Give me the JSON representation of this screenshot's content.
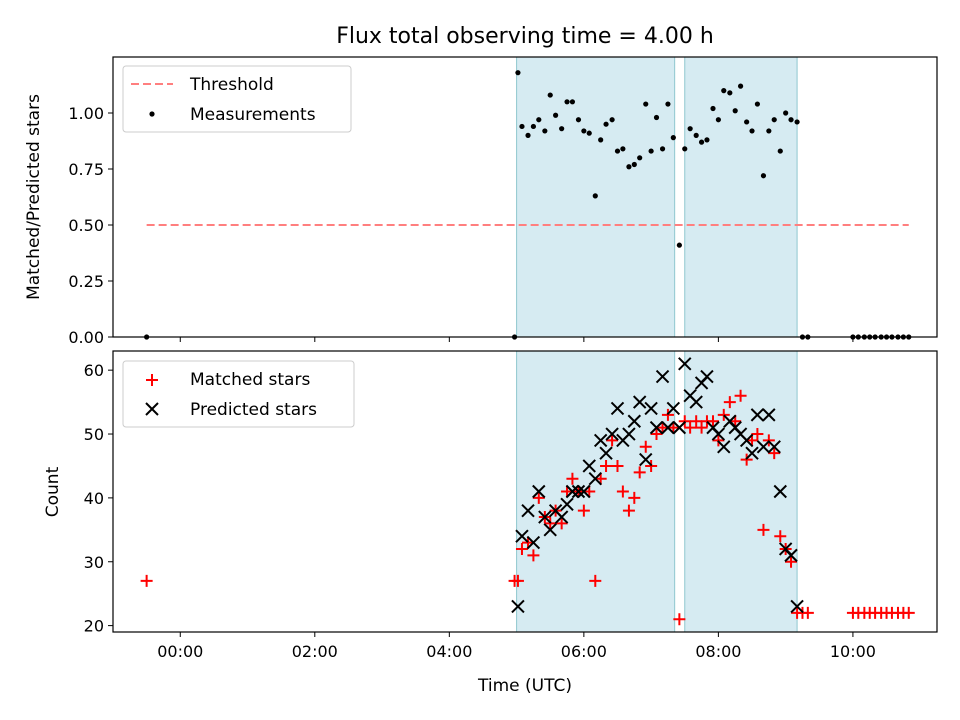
{
  "chart_data": [
    {
      "type": "scatter",
      "title": "Flux total observing time = 4.00 h",
      "xlabel": "",
      "ylabel": "Matched/Predicted stars",
      "xlim": [
        -1.0,
        11.25
      ],
      "ylim": [
        0.0,
        1.25
      ],
      "yticks": [
        0.0,
        0.25,
        0.5,
        0.75,
        1.0
      ],
      "ytick_labels": [
        "0.00",
        "0.25",
        "0.50",
        "0.75",
        "1.00"
      ],
      "shaded_intervals": [
        [
          5.0,
          7.35
        ],
        [
          7.5,
          9.17
        ]
      ],
      "shade_color": "#add8e6",
      "legend_position": "upper-left",
      "threshold": {
        "name": "Threshold",
        "y": 0.5,
        "x_range": [
          -0.5,
          10.83
        ],
        "color": "#ff7f7f",
        "style": "dashed"
      },
      "series": [
        {
          "name": "Measurements",
          "marker": "dot",
          "color": "#000000",
          "x": [
            -0.5,
            4.97,
            5.02,
            5.08,
            5.17,
            5.25,
            5.33,
            5.42,
            5.5,
            5.58,
            5.67,
            5.75,
            5.83,
            5.92,
            6.0,
            6.08,
            6.17,
            6.25,
            6.33,
            6.42,
            6.5,
            6.58,
            6.67,
            6.75,
            6.83,
            6.92,
            7.0,
            7.08,
            7.17,
            7.25,
            7.33,
            7.42,
            7.5,
            7.58,
            7.67,
            7.75,
            7.83,
            7.92,
            8.0,
            8.08,
            8.17,
            8.25,
            8.33,
            8.42,
            8.5,
            8.58,
            8.67,
            8.75,
            8.83,
            8.92,
            9.0,
            9.08,
            9.17,
            9.25,
            9.33,
            10.0,
            10.08,
            10.17,
            10.25,
            10.33,
            10.42,
            10.5,
            10.58,
            10.67,
            10.75,
            10.83
          ],
          "y": [
            0.0,
            0.0,
            1.18,
            0.94,
            0.9,
            0.94,
            0.97,
            0.92,
            1.08,
            0.99,
            0.93,
            1.05,
            1.05,
            0.97,
            0.92,
            0.91,
            0.63,
            0.88,
            0.95,
            0.97,
            0.83,
            0.84,
            0.76,
            0.77,
            0.8,
            1.04,
            0.83,
            0.98,
            0.84,
            1.04,
            0.89,
            0.41,
            0.84,
            0.93,
            0.9,
            0.87,
            0.88,
            1.02,
            0.97,
            1.1,
            1.09,
            1.01,
            1.12,
            0.96,
            0.92,
            1.04,
            0.72,
            0.92,
            0.97,
            0.83,
            1.0,
            0.97,
            0.96,
            0.0,
            0.0,
            0.0,
            0.0,
            0.0,
            0.0,
            0.0,
            0.0,
            0.0,
            0.0,
            0.0,
            0.0,
            0.0
          ]
        }
      ]
    },
    {
      "type": "scatter",
      "title": "",
      "xlabel": "Time (UTC)",
      "ylabel": "Count",
      "xlim": [
        -1.0,
        11.25
      ],
      "ylim": [
        19.0,
        63.0
      ],
      "yticks": [
        20,
        30,
        40,
        50,
        60
      ],
      "ytick_labels": [
        "20",
        "30",
        "40",
        "50",
        "60"
      ],
      "xticks": [
        0,
        2,
        4,
        6,
        8,
        10
      ],
      "xtick_labels": [
        "00:00",
        "02:00",
        "04:00",
        "06:00",
        "08:00",
        "10:00"
      ],
      "shaded_intervals": [
        [
          5.0,
          7.35
        ],
        [
          7.5,
          9.17
        ]
      ],
      "shade_color": "#add8e6",
      "legend_position": "upper-left",
      "series": [
        {
          "name": "Matched stars",
          "marker": "plus",
          "color": "#ff0000",
          "x": [
            -0.5,
            4.97,
            5.02,
            5.08,
            5.17,
            5.25,
            5.33,
            5.42,
            5.5,
            5.58,
            5.67,
            5.75,
            5.83,
            5.92,
            6.0,
            6.08,
            6.17,
            6.25,
            6.33,
            6.42,
            6.5,
            6.58,
            6.67,
            6.75,
            6.83,
            6.92,
            7.0,
            7.08,
            7.17,
            7.25,
            7.33,
            7.42,
            7.5,
            7.58,
            7.67,
            7.75,
            7.83,
            7.92,
            8.0,
            8.08,
            8.17,
            8.25,
            8.33,
            8.42,
            8.5,
            8.58,
            8.67,
            8.75,
            8.83,
            8.92,
            9.0,
            9.08,
            9.17,
            9.25,
            9.33,
            10.0,
            10.08,
            10.17,
            10.25,
            10.33,
            10.42,
            10.5,
            10.58,
            10.67,
            10.75,
            10.83
          ],
          "y": [
            27,
            27,
            27,
            32,
            33,
            31,
            40,
            37,
            36,
            38,
            36,
            41,
            43,
            41,
            38,
            41,
            27,
            43,
            45,
            49,
            45,
            41,
            38,
            40,
            44,
            48,
            45,
            50,
            51,
            53,
            51,
            21,
            52,
            51,
            52,
            51,
            52,
            52,
            49,
            53,
            55,
            52,
            56,
            46,
            49,
            50,
            35,
            49,
            47,
            34,
            32,
            30,
            22,
            22,
            22,
            22,
            22,
            22,
            22,
            22,
            22,
            22,
            22,
            22,
            22,
            22
          ]
        },
        {
          "name": "Predicted stars",
          "marker": "x",
          "color": "#000000",
          "x": [
            5.02,
            5.08,
            5.17,
            5.25,
            5.33,
            5.42,
            5.5,
            5.58,
            5.67,
            5.75,
            5.83,
            5.92,
            6.0,
            6.08,
            6.17,
            6.25,
            6.33,
            6.42,
            6.5,
            6.58,
            6.67,
            6.75,
            6.83,
            6.92,
            7.0,
            7.08,
            7.17,
            7.25,
            7.33,
            7.42,
            7.5,
            7.58,
            7.67,
            7.75,
            7.83,
            7.92,
            8.0,
            8.08,
            8.17,
            8.25,
            8.33,
            8.42,
            8.5,
            8.58,
            8.67,
            8.75,
            8.83,
            8.92,
            9.0,
            9.08,
            9.17
          ],
          "y": [
            23,
            34,
            38,
            33,
            41,
            37,
            35,
            38,
            37,
            39,
            41,
            41,
            41,
            45,
            43,
            49,
            47,
            50,
            54,
            49,
            50,
            52,
            55,
            46,
            54,
            51,
            59,
            51,
            54,
            51,
            61,
            56,
            55,
            58,
            59,
            51,
            50,
            48,
            52,
            51,
            50,
            49,
            47,
            53,
            48,
            53,
            48,
            41,
            32,
            31,
            23
          ]
        }
      ]
    }
  ]
}
